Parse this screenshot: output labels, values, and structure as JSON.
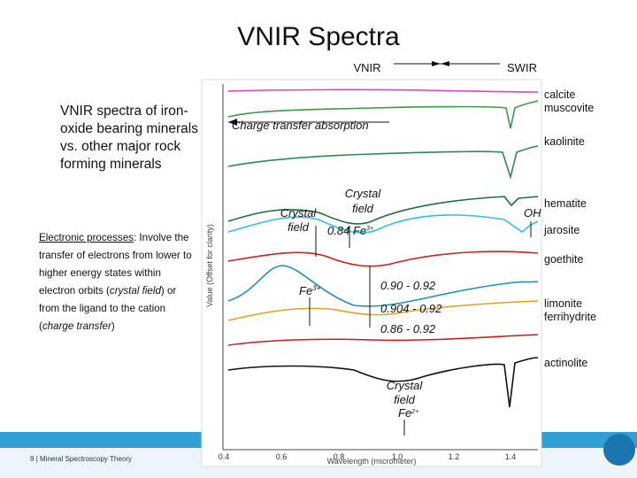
{
  "title": "VNIR Spectra",
  "sidebar": {
    "heading": "VNIR spectra of iron-oxide bearing minerals vs. other major rock forming minerals",
    "paragraph": [
      "Electronic processes",
      ": Involve the transfer of electrons from lower to higher energy states within electron orbits (",
      "crystal field",
      ") or from the ligand to the cation (",
      "charge transfer",
      ")"
    ]
  },
  "figure": {
    "vnir": "VNIR",
    "swir": "SWIR",
    "y_axis_label": "Value (Offset for clarity)",
    "x_axis_label": "Wavelength (micrometer)",
    "x_ticks": [
      "0.4",
      "0.6",
      "0.8",
      "1.0",
      "1.2",
      "1.4"
    ],
    "minerals": [
      "calcite",
      "muscovite",
      "kaolinite",
      "hematite",
      "jarosite",
      "goethite",
      "limonite",
      "ferrihydrite",
      "actinolite"
    ],
    "annotations": {
      "charge_transfer": "Charge transfer absorption",
      "crystal_field_a": [
        "Crystal",
        "field"
      ],
      "crystal_field_b": [
        "Crystal",
        "field"
      ],
      "fe3_084": {
        "value": "0.84",
        "ion": "Fe",
        "charge": "3+"
      },
      "oh": "OH",
      "fe3": {
        "ion": "Fe",
        "charge": "3+"
      },
      "range_1": "0.90 - 0.92",
      "range_2": "0.904 - 0.92",
      "range_3": "0.86 - 0.92",
      "crystal_field_c": [
        "Crystal",
        "field"
      ],
      "fe2": {
        "ion": "Fe",
        "charge": "2+"
      }
    }
  },
  "footer": {
    "page": "9",
    "separator": "|",
    "text": "Mineral Spectroscopy Theory"
  }
}
